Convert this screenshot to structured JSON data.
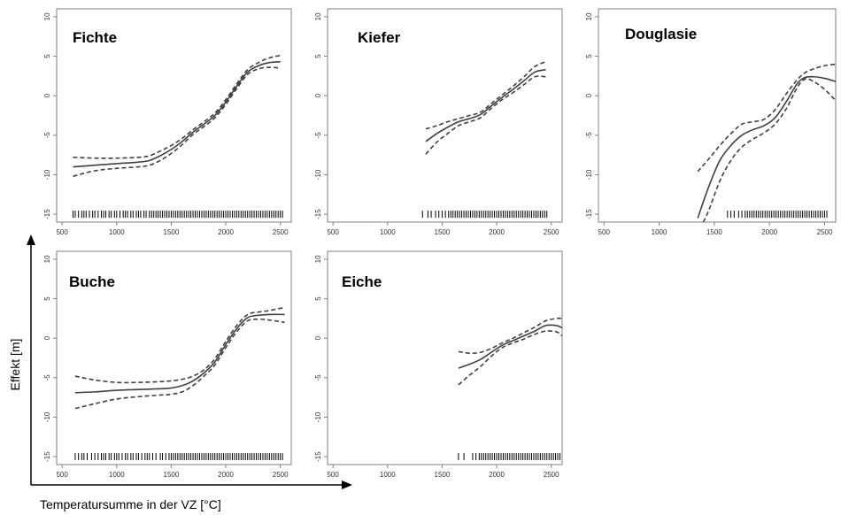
{
  "figure": {
    "ylabel": "Effekt [m]",
    "xlabel": "Temperatursumme in der VZ [°C]"
  },
  "chart_data": [
    {
      "type": "line",
      "title": "Fichte",
      "xlabel": "",
      "ylabel": "",
      "xlim": [
        450,
        2600
      ],
      "ylim": [
        -16,
        11
      ],
      "xticks": [
        500,
        1000,
        1500,
        2000,
        2500
      ],
      "xtick_labels": [
        "500",
        "1000",
        "1500",
        "2000",
        "2500"
      ],
      "yticks": [
        -15,
        -10,
        -5,
        0,
        5,
        10
      ],
      "ytick_labels": [
        "-15",
        "-10",
        "-5",
        "0",
        "5",
        "10"
      ],
      "grid": false,
      "series": [
        {
          "role": "fit",
          "x": [
            600,
            800,
            1000,
            1200,
            1300,
            1400,
            1500,
            1600,
            1700,
            1800,
            1900,
            2000,
            2100,
            2200,
            2300,
            2400,
            2500
          ],
          "y": [
            -9,
            -8.8,
            -8.6,
            -8.4,
            -8.2,
            -7.6,
            -6.8,
            -5.8,
            -4.6,
            -3.6,
            -2.5,
            -0.8,
            1.2,
            3.0,
            3.8,
            4.2,
            4.3
          ]
        },
        {
          "role": "upper",
          "x": [
            600,
            800,
            1000,
            1200,
            1300,
            1400,
            1500,
            1600,
            1700,
            1800,
            1900,
            2000,
            2100,
            2200,
            2300,
            2400,
            2500
          ],
          "y": [
            -7.8,
            -7.9,
            -7.9,
            -7.8,
            -7.6,
            -7.0,
            -6.3,
            -5.4,
            -4.3,
            -3.3,
            -2.2,
            -0.5,
            1.5,
            3.3,
            4.2,
            4.8,
            5.1
          ]
        },
        {
          "role": "lower",
          "x": [
            600,
            800,
            1000,
            1200,
            1300,
            1400,
            1500,
            1600,
            1700,
            1800,
            1900,
            2000,
            2100,
            2200,
            2300,
            2400,
            2500
          ],
          "y": [
            -10.2,
            -9.5,
            -9.2,
            -9.0,
            -8.8,
            -8.2,
            -7.3,
            -6.2,
            -4.9,
            -3.9,
            -2.8,
            -1.1,
            0.9,
            2.7,
            3.4,
            3.6,
            3.5
          ]
        }
      ],
      "rug": [
        600,
        620,
        650,
        680,
        700,
        720,
        750,
        780,
        800,
        830,
        860,
        880,
        900,
        930,
        950,
        980,
        1000,
        1030,
        1060,
        1080,
        1100,
        1130,
        1150,
        1180,
        1200,
        1220,
        1250,
        1270,
        1300,
        1320,
        1340,
        1360,
        1380,
        1400,
        1420,
        1440,
        1460,
        1480,
        1500,
        1520,
        1540,
        1560,
        1580,
        1600,
        1620,
        1640,
        1660,
        1680,
        1700,
        1720,
        1740,
        1760,
        1780,
        1800,
        1820,
        1840,
        1860,
        1880,
        1900,
        1920,
        1940,
        1960,
        1980,
        2000,
        2020,
        2040,
        2060,
        2080,
        2100,
        2120,
        2140,
        2160,
        2180,
        2200,
        2220,
        2240,
        2260,
        2280,
        2300,
        2320,
        2340,
        2360,
        2380,
        2400,
        2420,
        2440,
        2460,
        2480,
        2500,
        2520
      ]
    },
    {
      "type": "line",
      "title": "Kiefer",
      "xlabel": "",
      "ylabel": "",
      "xlim": [
        450,
        2600
      ],
      "ylim": [
        -16,
        11
      ],
      "xticks": [
        500,
        1000,
        1500,
        2000,
        2500
      ],
      "xtick_labels": [
        "500",
        "1000",
        "1500",
        "2000",
        "2500"
      ],
      "yticks": [
        -15,
        -10,
        -5,
        0,
        5,
        10
      ],
      "ytick_labels": [
        "-15",
        "-10",
        "-5",
        "0",
        "5",
        "10"
      ],
      "grid": false,
      "series": [
        {
          "role": "fit",
          "x": [
            1350,
            1450,
            1550,
            1650,
            1750,
            1850,
            1950,
            2050,
            2150,
            2250,
            2350,
            2450
          ],
          "y": [
            -5.8,
            -4.8,
            -4.0,
            -3.3,
            -2.9,
            -2.4,
            -1.3,
            -0.2,
            0.8,
            1.9,
            3.0,
            3.3
          ]
        },
        {
          "role": "upper",
          "x": [
            1350,
            1450,
            1550,
            1650,
            1750,
            1850,
            1950,
            2050,
            2150,
            2250,
            2350,
            2450
          ],
          "y": [
            -4.2,
            -3.8,
            -3.3,
            -2.9,
            -2.5,
            -2.1,
            -1.0,
            0.1,
            1.2,
            2.4,
            3.7,
            4.3
          ]
        },
        {
          "role": "lower",
          "x": [
            1350,
            1450,
            1550,
            1650,
            1750,
            1850,
            1950,
            2050,
            2150,
            2250,
            2350,
            2450
          ],
          "y": [
            -7.4,
            -5.9,
            -4.8,
            -3.8,
            -3.3,
            -2.8,
            -1.6,
            -0.5,
            0.4,
            1.4,
            2.4,
            2.4
          ]
        }
      ],
      "rug": [
        1320,
        1370,
        1400,
        1440,
        1470,
        1500,
        1530,
        1560,
        1580,
        1600,
        1620,
        1640,
        1660,
        1680,
        1700,
        1720,
        1740,
        1760,
        1780,
        1800,
        1820,
        1840,
        1860,
        1880,
        1900,
        1920,
        1940,
        1960,
        1980,
        2000,
        2020,
        2040,
        2060,
        2080,
        2100,
        2120,
        2140,
        2160,
        2180,
        2200,
        2220,
        2240,
        2260,
        2280,
        2300,
        2320,
        2340,
        2360,
        2380,
        2400,
        2420,
        2440,
        2460
      ]
    },
    {
      "type": "line",
      "title": "Douglasie",
      "xlabel": "",
      "ylabel": "",
      "xlim": [
        450,
        2600
      ],
      "ylim": [
        -16,
        11
      ],
      "xticks": [
        500,
        1000,
        1500,
        2000,
        2500
      ],
      "xtick_labels": [
        "500",
        "1000",
        "1500",
        "2000",
        "2500"
      ],
      "yticks": [
        -15,
        -10,
        -5,
        0,
        5,
        10
      ],
      "ytick_labels": [
        "-15",
        "-10",
        "-5",
        "0",
        "5",
        "10"
      ],
      "grid": false,
      "series": [
        {
          "role": "fit",
          "x": [
            1350,
            1450,
            1550,
            1650,
            1750,
            1850,
            1950,
            2050,
            2150,
            2250,
            2320,
            2400,
            2500,
            2600
          ],
          "y": [
            -15.5,
            -11.5,
            -8.2,
            -6.3,
            -5.0,
            -4.3,
            -3.8,
            -2.8,
            -0.8,
            1.5,
            2.3,
            2.4,
            2.2,
            1.8
          ]
        },
        {
          "role": "upper",
          "x": [
            1350,
            1450,
            1550,
            1650,
            1750,
            1850,
            1950,
            2050,
            2150,
            2250,
            2320,
            2400,
            2500,
            2600
          ],
          "y": [
            -9.6,
            -8.0,
            -6.3,
            -4.8,
            -3.6,
            -3.3,
            -3.0,
            -1.8,
            0.2,
            2.0,
            2.9,
            3.4,
            3.8,
            4.0
          ]
        },
        {
          "role": "lower",
          "x": [
            1400,
            1450,
            1550,
            1650,
            1750,
            1850,
            1950,
            2050,
            2150,
            2250,
            2320,
            2400,
            2500,
            2600
          ],
          "y": [
            -16.0,
            -14.5,
            -10.8,
            -8.2,
            -6.5,
            -5.5,
            -4.7,
            -3.6,
            -1.7,
            1.0,
            2.1,
            1.8,
            0.8,
            -0.6
          ]
        }
      ],
      "rug": [
        1620,
        1650,
        1680,
        1720,
        1750,
        1780,
        1800,
        1820,
        1840,
        1860,
        1880,
        1900,
        1920,
        1940,
        1960,
        1980,
        2000,
        2020,
        2040,
        2060,
        2080,
        2100,
        2120,
        2140,
        2160,
        2180,
        2200,
        2220,
        2240,
        2260,
        2280,
        2300,
        2320,
        2340,
        2360,
        2380,
        2400,
        2420,
        2440,
        2460,
        2480,
        2500,
        2520
      ]
    },
    {
      "type": "line",
      "title": "Buche",
      "xlabel": "",
      "ylabel": "",
      "xlim": [
        450,
        2600
      ],
      "ylim": [
        -16,
        11
      ],
      "xticks": [
        500,
        1000,
        1500,
        2000,
        2500
      ],
      "xtick_labels": [
        "500",
        "1000",
        "1500",
        "2000",
        "2500"
      ],
      "yticks": [
        -15,
        -10,
        -5,
        0,
        5,
        10
      ],
      "ytick_labels": [
        "-15",
        "-10",
        "-5",
        "0",
        "5",
        "10"
      ],
      "grid": false,
      "series": [
        {
          "role": "fit",
          "x": [
            620,
            800,
            1000,
            1200,
            1400,
            1500,
            1600,
            1700,
            1800,
            1900,
            2000,
            2100,
            2200,
            2300,
            2400,
            2540
          ],
          "y": [
            -6.9,
            -6.8,
            -6.6,
            -6.5,
            -6.4,
            -6.3,
            -6.0,
            -5.4,
            -4.4,
            -3.0,
            -0.8,
            1.2,
            2.6,
            2.9,
            3.0,
            3.0
          ]
        },
        {
          "role": "upper",
          "x": [
            620,
            800,
            1000,
            1200,
            1400,
            1500,
            1600,
            1700,
            1800,
            1900,
            2000,
            2100,
            2200,
            2300,
            2400,
            2540
          ],
          "y": [
            -4.8,
            -5.3,
            -5.6,
            -5.6,
            -5.5,
            -5.4,
            -5.2,
            -4.8,
            -4.0,
            -2.6,
            -0.4,
            1.6,
            3.0,
            3.3,
            3.5,
            3.9
          ]
        },
        {
          "role": "lower",
          "x": [
            620,
            800,
            1000,
            1200,
            1400,
            1500,
            1600,
            1700,
            1800,
            1900,
            2000,
            2100,
            2200,
            2300,
            2400,
            2540
          ],
          "y": [
            -8.9,
            -8.3,
            -7.7,
            -7.4,
            -7.2,
            -7.1,
            -6.8,
            -6.0,
            -4.8,
            -3.4,
            -1.2,
            0.8,
            2.2,
            2.4,
            2.3,
            2.0
          ]
        }
      ],
      "rug": [
        620,
        650,
        680,
        700,
        730,
        770,
        800,
        830,
        860,
        880,
        900,
        930,
        950,
        980,
        1000,
        1020,
        1050,
        1080,
        1100,
        1130,
        1150,
        1180,
        1200,
        1230,
        1260,
        1280,
        1300,
        1330,
        1360,
        1400,
        1420,
        1450,
        1480,
        1500,
        1520,
        1540,
        1560,
        1580,
        1600,
        1620,
        1640,
        1660,
        1680,
        1700,
        1720,
        1740,
        1760,
        1780,
        1800,
        1820,
        1840,
        1860,
        1880,
        1900,
        1920,
        1940,
        1960,
        1980,
        2000,
        2020,
        2040,
        2060,
        2080,
        2100,
        2120,
        2140,
        2160,
        2180,
        2200,
        2220,
        2240,
        2260,
        2280,
        2300,
        2320,
        2340,
        2360,
        2380,
        2400,
        2420,
        2440,
        2460,
        2480,
        2500,
        2520
      ]
    },
    {
      "type": "line",
      "title": "Eiche",
      "xlabel": "",
      "ylabel": "",
      "xlim": [
        450,
        2600
      ],
      "ylim": [
        -16,
        11
      ],
      "xticks": [
        500,
        1000,
        1500,
        2000,
        2500
      ],
      "xtick_labels": [
        "500",
        "1000",
        "1500",
        "2000",
        "2500"
      ],
      "yticks": [
        -15,
        -10,
        -5,
        0,
        5,
        10
      ],
      "ytick_labels": [
        "-15",
        "-10",
        "-5",
        "0",
        "5",
        "10"
      ],
      "grid": false,
      "series": [
        {
          "role": "fit",
          "x": [
            1650,
            1750,
            1850,
            1950,
            2050,
            2150,
            2250,
            2350,
            2450,
            2550,
            2600
          ],
          "y": [
            -3.8,
            -3.3,
            -2.7,
            -1.8,
            -0.9,
            -0.3,
            0.3,
            0.9,
            1.6,
            1.6,
            1.3
          ]
        },
        {
          "role": "upper",
          "x": [
            1650,
            1750,
            1850,
            1950,
            2050,
            2150,
            2250,
            2350,
            2450,
            2550,
            2600
          ],
          "y": [
            -1.7,
            -1.9,
            -1.8,
            -1.3,
            -0.6,
            0.0,
            0.7,
            1.4,
            2.2,
            2.5,
            2.5
          ]
        },
        {
          "role": "lower",
          "x": [
            1650,
            1750,
            1850,
            1950,
            2050,
            2150,
            2250,
            2350,
            2450,
            2550,
            2600
          ],
          "y": [
            -5.9,
            -4.7,
            -3.6,
            -2.3,
            -1.2,
            -0.6,
            -0.1,
            0.5,
            0.9,
            0.8,
            0.3
          ]
        }
      ],
      "rug": [
        1650,
        1700,
        1780,
        1810,
        1840,
        1860,
        1880,
        1900,
        1920,
        1940,
        1960,
        1980,
        2000,
        2020,
        2040,
        2060,
        2080,
        2100,
        2120,
        2140,
        2160,
        2180,
        2200,
        2220,
        2240,
        2260,
        2280,
        2300,
        2320,
        2340,
        2360,
        2380,
        2400,
        2420,
        2440,
        2460,
        2480,
        2500,
        2520,
        2540,
        2560,
        2580
      ]
    }
  ]
}
